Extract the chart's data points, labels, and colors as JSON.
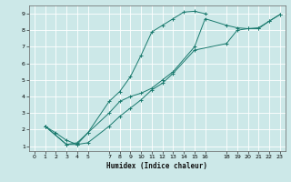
{
  "xlabel": "Humidex (Indice chaleur)",
  "background_color": "#cce8e8",
  "grid_color": "#ffffff",
  "line_color": "#1a7a6e",
  "xlim": [
    -0.5,
    23.5
  ],
  "ylim": [
    0.7,
    9.5
  ],
  "xticks": [
    0,
    1,
    2,
    3,
    4,
    5,
    7,
    8,
    9,
    10,
    11,
    12,
    13,
    14,
    15,
    16,
    18,
    19,
    20,
    21,
    22,
    23
  ],
  "yticks": [
    1,
    2,
    3,
    4,
    5,
    6,
    7,
    8,
    9
  ],
  "line1_x": [
    1,
    2,
    3,
    4,
    5,
    7,
    8,
    9,
    10,
    11,
    12,
    13,
    14,
    15,
    16
  ],
  "line1_y": [
    2.2,
    1.8,
    1.35,
    1.1,
    1.8,
    3.7,
    4.3,
    5.2,
    6.5,
    7.9,
    8.3,
    8.7,
    9.1,
    9.15,
    9.0
  ],
  "line2_x": [
    1,
    3,
    4,
    5,
    7,
    8,
    9,
    10,
    11,
    12,
    13,
    15,
    18,
    19,
    20,
    21,
    22,
    23
  ],
  "line2_y": [
    2.2,
    1.1,
    1.1,
    1.2,
    2.2,
    2.8,
    3.3,
    3.8,
    4.4,
    4.8,
    5.4,
    6.8,
    7.2,
    8.0,
    8.1,
    8.15,
    8.55,
    8.95
  ],
  "line3_x": [
    1,
    3,
    4,
    5,
    7,
    8,
    9,
    10,
    11,
    12,
    13,
    15,
    16,
    18,
    19,
    20,
    21,
    22,
    23
  ],
  "line3_y": [
    2.2,
    1.1,
    1.2,
    1.8,
    3.0,
    3.7,
    4.0,
    4.2,
    4.5,
    5.0,
    5.5,
    7.0,
    8.7,
    8.3,
    8.15,
    8.1,
    8.1,
    8.55,
    8.95
  ]
}
